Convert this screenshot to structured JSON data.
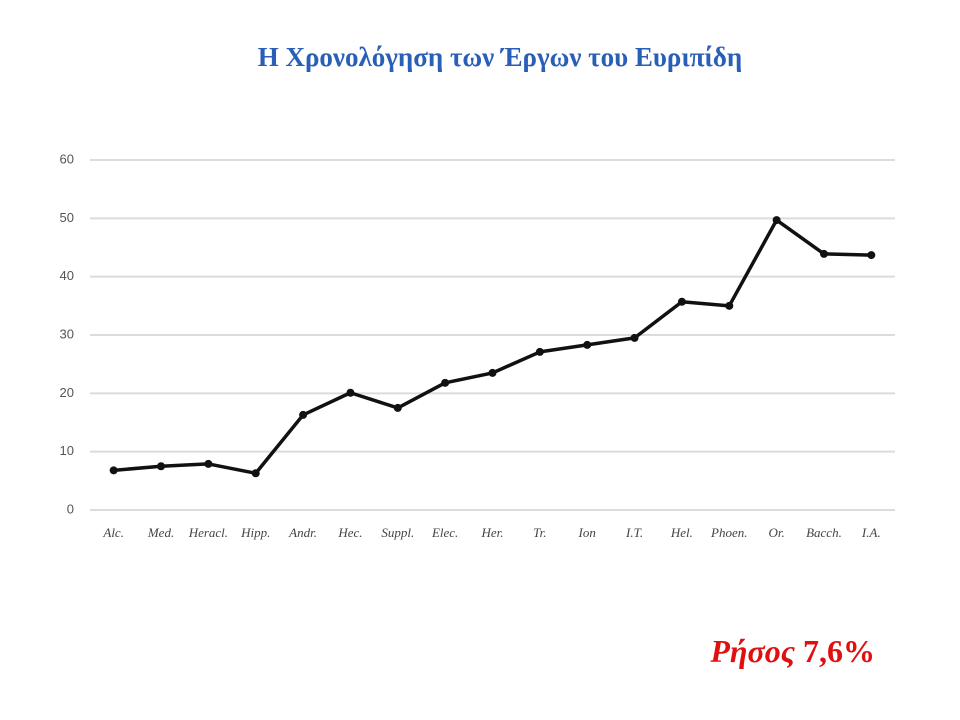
{
  "chart_data": {
    "type": "line",
    "title": "Η Χρονολόγηση των Έργων του Ευριπίδη",
    "categories": [
      "Alc.",
      "Med.",
      "Heracl.",
      "Hipp.",
      "Andr.",
      "Hec.",
      "Suppl.",
      "Elec.",
      "Her.",
      "Tr.",
      "Ion",
      "I.T.",
      "Hel.",
      "Phoen.",
      "Or.",
      "Bacch.",
      "I.A."
    ],
    "series": [
      {
        "name": "Euripides",
        "color": "#111111",
        "values": [
          6.8,
          7.5,
          7.9,
          6.3,
          16.3,
          20.1,
          17.5,
          21.8,
          23.5,
          27.1,
          28.3,
          29.5,
          35.7,
          35.0,
          49.7,
          43.9,
          43.7
        ]
      }
    ],
    "ylim": [
      0,
      60
    ],
    "yticks": [
      0,
      10,
      20,
      30,
      40,
      50,
      60
    ],
    "grid": true,
    "annotation": {
      "name": "Ρήσος",
      "value": "7,6%"
    }
  }
}
